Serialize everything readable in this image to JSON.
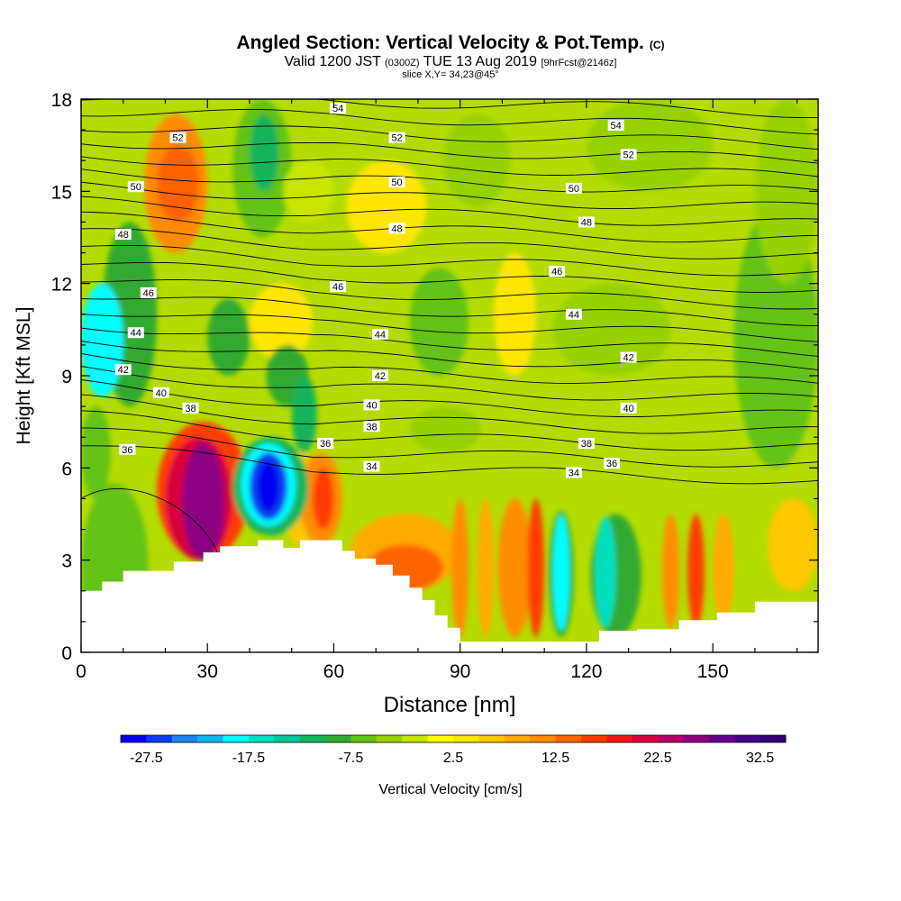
{
  "header": {
    "title": "Angled Section: Vertical Velocity & Pot.Temp.",
    "title_unit": "(C)",
    "subtitle_valid": "Valid 1200 JST",
    "subtitle_utc": "(0300Z)",
    "subtitle_date": "TUE 13 Aug 2019",
    "subtitle_fcst": "[9hrFcst@2146z]",
    "slice": "slice X,Y= 34,23@45°"
  },
  "chart_data": {
    "type": "heatmap",
    "xlabel": "Distance [nm]",
    "ylabel": "Height [Kft MSL]",
    "xlim": [
      0,
      175
    ],
    "ylim": [
      0,
      18
    ],
    "xticks": [
      0,
      30,
      60,
      90,
      120,
      150
    ],
    "yticks": [
      0,
      3,
      6,
      9,
      12,
      15,
      18
    ],
    "colorbar": {
      "label": "Vertical Velocity [cm/s]",
      "min": -30,
      "max": 35,
      "step": 2.5,
      "tick_labels": [
        "-27.5",
        "-17.5",
        "-7.5",
        "2.5",
        "12.5",
        "22.5",
        "32.5"
      ],
      "tick_values": [
        -27.5,
        -17.5,
        -7.5,
        2.5,
        12.5,
        22.5,
        32.5
      ],
      "colors": [
        "#0000ee",
        "#0a3cf0",
        "#1e82f0",
        "#14b4f0",
        "#00ffff",
        "#00e0c0",
        "#00c896",
        "#14b45a",
        "#32aa32",
        "#64c314",
        "#96d200",
        "#c8e600",
        "#ffff00",
        "#ffe600",
        "#ffc800",
        "#ffaa00",
        "#ff8c00",
        "#ff6400",
        "#ff3c00",
        "#f01414",
        "#d7003c",
        "#b40064",
        "#8c0082",
        "#64008c",
        "#46008c",
        "#320078"
      ]
    },
    "terrain_profile": [
      [
        0,
        2
      ],
      [
        5,
        2
      ],
      [
        5,
        2.3
      ],
      [
        10,
        2.3
      ],
      [
        10,
        2.65
      ],
      [
        22,
        2.65
      ],
      [
        22,
        2.95
      ],
      [
        29,
        2.95
      ],
      [
        29,
        3.25
      ],
      [
        33,
        3.25
      ],
      [
        33,
        3.45
      ],
      [
        42,
        3.45
      ],
      [
        42,
        3.65
      ],
      [
        48,
        3.65
      ],
      [
        48,
        3.4
      ],
      [
        52,
        3.4
      ],
      [
        52,
        3.65
      ],
      [
        62,
        3.65
      ],
      [
        62,
        3.3
      ],
      [
        65,
        3.3
      ],
      [
        65,
        3.05
      ],
      [
        70,
        3.05
      ],
      [
        70,
        2.85
      ],
      [
        74,
        2.85
      ],
      [
        74,
        2.5
      ],
      [
        78,
        2.5
      ],
      [
        78,
        2.1
      ],
      [
        81,
        2.1
      ],
      [
        81,
        1.7
      ],
      [
        84,
        1.7
      ],
      [
        84,
        1.2
      ],
      [
        87,
        1.2
      ],
      [
        87,
        0.8
      ],
      [
        90,
        0.8
      ],
      [
        90,
        0.35
      ],
      [
        123,
        0.35
      ],
      [
        123,
        0.7
      ],
      [
        132,
        0.7
      ],
      [
        132,
        0.75
      ],
      [
        142,
        0.75
      ],
      [
        142,
        1.05
      ],
      [
        151,
        1.05
      ],
      [
        151,
        1.3
      ],
      [
        160,
        1.3
      ],
      [
        160,
        1.65
      ],
      [
        175,
        1.65
      ]
    ],
    "isentrope_labels": [
      {
        "value": "54",
        "x": 61,
        "y": 17.7
      },
      {
        "value": "54",
        "x": 127,
        "y": 17.15
      },
      {
        "value": "52",
        "x": 23,
        "y": 16.75
      },
      {
        "value": "52",
        "x": 75,
        "y": 16.75
      },
      {
        "value": "52",
        "x": 130,
        "y": 16.2
      },
      {
        "value": "50",
        "x": 13,
        "y": 15.15
      },
      {
        "value": "50",
        "x": 75,
        "y": 15.3
      },
      {
        "value": "50",
        "x": 117,
        "y": 15.1
      },
      {
        "value": "48",
        "x": 10,
        "y": 13.6
      },
      {
        "value": "48",
        "x": 75,
        "y": 13.8
      },
      {
        "value": "48",
        "x": 120,
        "y": 14.0
      },
      {
        "value": "46",
        "x": 16,
        "y": 11.7
      },
      {
        "value": "46",
        "x": 61,
        "y": 11.9
      },
      {
        "value": "46",
        "x": 113,
        "y": 12.4
      },
      {
        "value": "44",
        "x": 13,
        "y": 10.4
      },
      {
        "value": "44",
        "x": 71,
        "y": 10.35
      },
      {
        "value": "44",
        "x": 117,
        "y": 11.0
      },
      {
        "value": "42",
        "x": 10,
        "y": 9.2
      },
      {
        "value": "42",
        "x": 71,
        "y": 9.0
      },
      {
        "value": "42",
        "x": 130,
        "y": 9.6
      },
      {
        "value": "40",
        "x": 19,
        "y": 8.45
      },
      {
        "value": "40",
        "x": 69,
        "y": 8.05
      },
      {
        "value": "40",
        "x": 130,
        "y": 7.95
      },
      {
        "value": "38",
        "x": 26,
        "y": 7.95
      },
      {
        "value": "38",
        "x": 69,
        "y": 7.35
      },
      {
        "value": "38",
        "x": 120,
        "y": 6.8
      },
      {
        "value": "36",
        "x": 11,
        "y": 6.6
      },
      {
        "value": "36",
        "x": 58,
        "y": 6.8
      },
      {
        "value": "36",
        "x": 126,
        "y": 6.15
      },
      {
        "value": "34",
        "x": 69,
        "y": 6.05
      },
      {
        "value": "34",
        "x": 117,
        "y": 5.85
      }
    ]
  }
}
